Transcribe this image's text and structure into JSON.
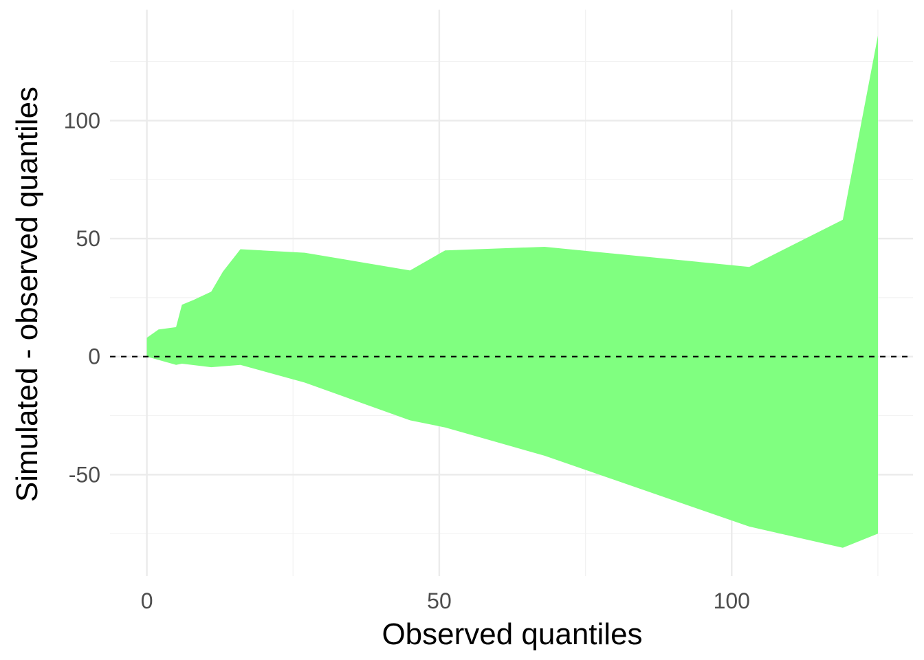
{
  "chart_data": {
    "type": "area",
    "title": "",
    "xlabel": "Observed quantiles",
    "ylabel": "Simulated - observed quantiles",
    "xlim": [
      -6.3,
      131
    ],
    "ylim": [
      -93,
      147
    ],
    "x_ticks": [
      0,
      50,
      100
    ],
    "y_ticks": [
      -50,
      0,
      50,
      100
    ],
    "x_minor_ticks": [
      25,
      75,
      125
    ],
    "y_minor_ticks": [
      -75,
      -25,
      25,
      75,
      125
    ],
    "grid": true,
    "band": {
      "upper": [
        {
          "x": 0,
          "y": 8
        },
        {
          "x": 2,
          "y": 11.5
        },
        {
          "x": 5,
          "y": 12.5
        },
        {
          "x": 6,
          "y": 22
        },
        {
          "x": 8,
          "y": 24
        },
        {
          "x": 11,
          "y": 27.5
        },
        {
          "x": 13,
          "y": 36
        },
        {
          "x": 16,
          "y": 45.5
        },
        {
          "x": 27,
          "y": 44
        },
        {
          "x": 45,
          "y": 36.5
        },
        {
          "x": 51,
          "y": 45
        },
        {
          "x": 68,
          "y": 46.5
        },
        {
          "x": 103,
          "y": 38
        },
        {
          "x": 119,
          "y": 58
        },
        {
          "x": 125,
          "y": 136
        }
      ],
      "lower": [
        {
          "x": 0,
          "y": 0
        },
        {
          "x": 5,
          "y": -3.5
        },
        {
          "x": 6,
          "y": -3
        },
        {
          "x": 11,
          "y": -4.5
        },
        {
          "x": 16,
          "y": -3.5
        },
        {
          "x": 27,
          "y": -11
        },
        {
          "x": 45,
          "y": -27
        },
        {
          "x": 51,
          "y": -30
        },
        {
          "x": 68,
          "y": -42
        },
        {
          "x": 103,
          "y": -72
        },
        {
          "x": 119,
          "y": -81
        },
        {
          "x": 125,
          "y": -75
        }
      ],
      "color": "#80ff80"
    },
    "reference_line": {
      "y": 0,
      "style": "dashed",
      "color": "#000000"
    }
  }
}
